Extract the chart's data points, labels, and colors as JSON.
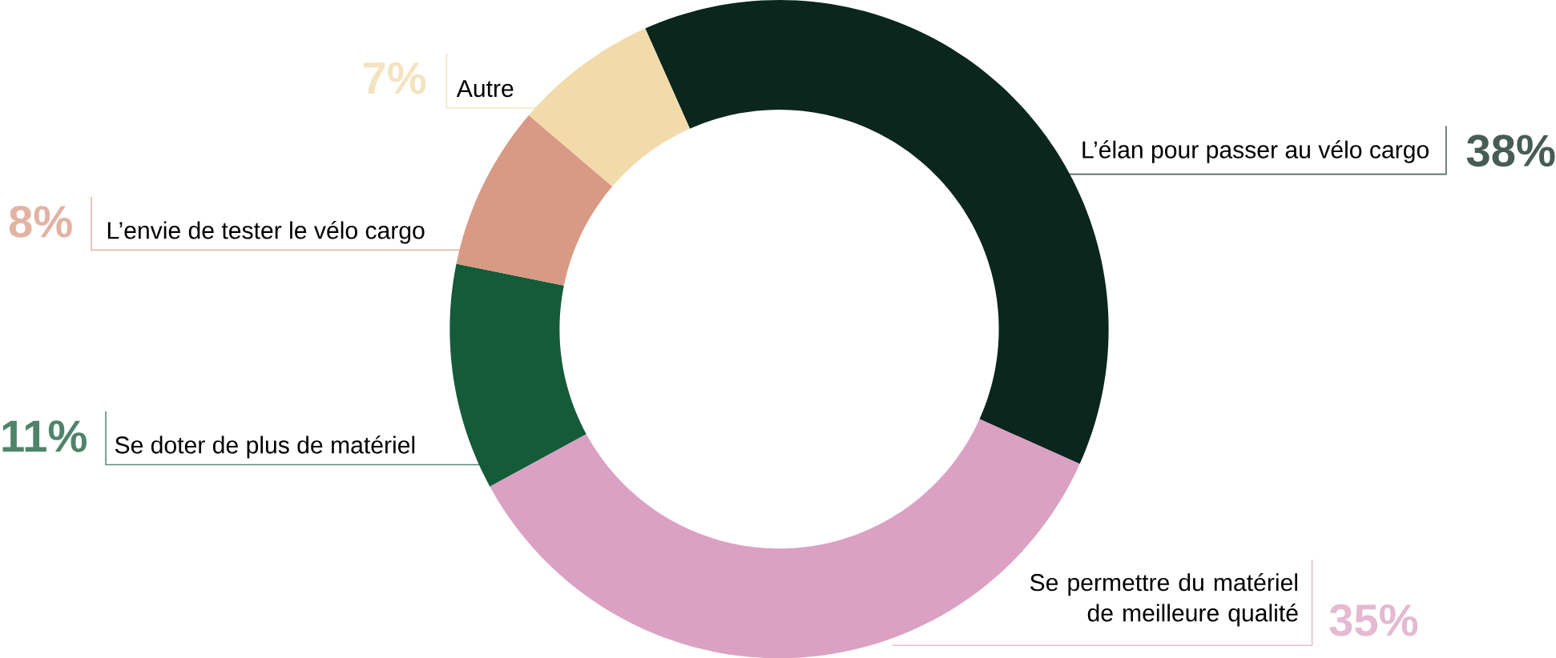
{
  "chart_data": {
    "type": "donut",
    "categories": [
      "L’élan pour passer au vélo cargo",
      "Se permettre du matériel de meilleure qualité",
      "Se doter de plus de matériel",
      "L’envie de tester le vélo cargo",
      "Autre"
    ],
    "values": [
      38,
      35,
      11,
      8,
      7
    ],
    "value_labels": [
      "38%",
      "35%",
      "11%",
      "8%",
      "7%"
    ],
    "colors": [
      "#0a261d",
      "#dba1c2",
      "#145b3a",
      "#d89a84",
      "#f2daab"
    ]
  }
}
